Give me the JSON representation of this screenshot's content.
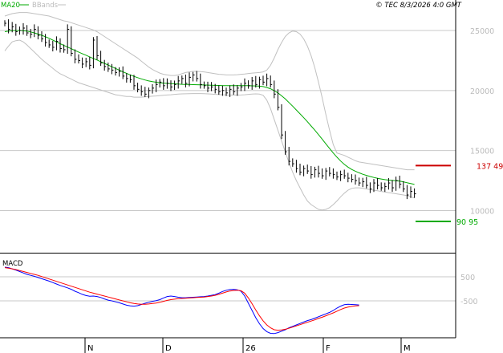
{
  "header": {
    "legend_ma20": "MA20",
    "legend_bbands": "BBands",
    "timestamp": "© TEC 8/3/2026 4:0 GMT"
  },
  "colors": {
    "price_bars": "#000000",
    "ma20": "#00aa00",
    "bbands": "#c0c0c0",
    "macd_line": "#0000ff",
    "macd_signal": "#ff0000",
    "resistance": "#cc0000",
    "support": "#00aa00",
    "grid": "#c8c8c8",
    "frame": "#000000"
  },
  "chart_data": [
    {
      "type": "ohlc",
      "panel": "price",
      "title": "",
      "y_ticks": [
        10000,
        15000,
        20000,
        25000
      ],
      "y_tick_labels": [
        "10000",
        "15000",
        "20000",
        "25000"
      ],
      "ylim": [
        7000,
        28000
      ],
      "x_ticks": [
        "N",
        "D",
        "26",
        "F",
        "M"
      ],
      "grid": true,
      "legend": [
        "MA20",
        "BBands"
      ],
      "legend_position": "top-left",
      "closes": [
        25600,
        25100,
        25300,
        24900,
        25000,
        25200,
        24800,
        24700,
        25100,
        24600,
        24300,
        24000,
        23800,
        23600,
        24100,
        23500,
        23400,
        25100,
        23100,
        22600,
        22500,
        22200,
        22400,
        22100,
        24200,
        22900,
        22300,
        22000,
        21800,
        21700,
        21500,
        21600,
        21200,
        21000,
        20900,
        20400,
        20100,
        19900,
        19700,
        20000,
        20200,
        20500,
        20700,
        20400,
        20600,
        20300,
        20500,
        20800,
        21000,
        20600,
        21100,
        21300,
        21000,
        20500,
        20400,
        20200,
        20300,
        20100,
        19900,
        20000,
        19800,
        20100,
        19900,
        20200,
        20300,
        20600,
        20400,
        20800,
        20500,
        20900,
        20700,
        21000,
        20500,
        19700,
        18600,
        16300,
        14900,
        14100,
        13900,
        13500,
        13200,
        13500,
        13300,
        13000,
        13400,
        13100,
        12900,
        13300,
        13100,
        13000,
        12800,
        13000,
        12900,
        12700,
        12600,
        12500,
        12300,
        12400,
        12100,
        11800,
        12300,
        12100,
        11900,
        12000,
        12300,
        11900,
        12500,
        12200,
        11800,
        11300,
        11600,
        11400
      ],
      "series": [
        {
          "name": "MA20",
          "values": [
            24900,
            24950,
            25000,
            25000,
            25000,
            24980,
            24950,
            24880,
            24800,
            24700,
            24600,
            24480,
            24350,
            24200,
            24050,
            23900,
            23760,
            23620,
            23480,
            23340,
            23200,
            23070,
            22940,
            22800,
            22670,
            22540,
            22400,
            22260,
            22120,
            21980,
            21840,
            21700,
            21560,
            21430,
            21300,
            21180,
            21070,
            20970,
            20880,
            20800,
            20740,
            20690,
            20650,
            20620,
            20600,
            20580,
            20560,
            20540,
            20520,
            20510,
            20500,
            20490,
            20480,
            20470,
            20460,
            20450,
            20440,
            20430,
            20420,
            20410,
            20400,
            20400,
            20400,
            20400,
            20400,
            20400,
            20400,
            20390,
            20380,
            20360,
            20330,
            20250,
            20150,
            19990,
            19800,
            19560,
            19300,
            19000,
            18700,
            18380,
            18060,
            17740,
            17400,
            17050,
            16700,
            16330,
            15950,
            15560,
            15170,
            14800,
            14450,
            14130,
            13850,
            13620,
            13430,
            13280,
            13150,
            13030,
            12930,
            12840,
            12760,
            12690,
            12630,
            12580,
            12540,
            12510,
            12490,
            12450,
            12400,
            12320,
            12250,
            12180
          ]
        },
        {
          "name": "BBands upper",
          "values": [
            26200,
            26300,
            26400,
            26450,
            26500,
            26500,
            26500,
            26450,
            26400,
            26350,
            26300,
            26250,
            26200,
            26100,
            26000,
            25900,
            25800,
            25750,
            25650,
            25550,
            25450,
            25350,
            25250,
            25150,
            25050,
            24900,
            24700,
            24500,
            24300,
            24100,
            23900,
            23700,
            23500,
            23300,
            23100,
            22900,
            22700,
            22450,
            22200,
            21950,
            21750,
            21600,
            21450,
            21350,
            21300,
            21250,
            21250,
            21300,
            21400,
            21500,
            21550,
            21600,
            21600,
            21580,
            21550,
            21500,
            21450,
            21400,
            21350,
            21330,
            21300,
            21300,
            21300,
            21320,
            21350,
            21380,
            21420,
            21450,
            21480,
            21500,
            21550,
            21700,
            22100,
            22700,
            23400,
            24000,
            24500,
            24800,
            24950,
            24900,
            24700,
            24300,
            23700,
            22900,
            21900,
            20700,
            19400,
            18000,
            16700,
            15500,
            14800,
            14700,
            14600,
            14450,
            14300,
            14150,
            14050,
            14000,
            13950,
            13900,
            13850,
            13800,
            13750,
            13700,
            13650,
            13600,
            13550,
            13500,
            13450,
            13400,
            13400,
            13400
          ]
        },
        {
          "name": "BBands lower",
          "values": [
            23300,
            23700,
            24050,
            24150,
            24200,
            24050,
            23800,
            23500,
            23200,
            22900,
            22600,
            22350,
            22100,
            21850,
            21600,
            21400,
            21250,
            21100,
            20950,
            20800,
            20650,
            20550,
            20450,
            20350,
            20250,
            20150,
            20050,
            19950,
            19850,
            19750,
            19650,
            19600,
            19550,
            19500,
            19500,
            19450,
            19450,
            19450,
            19480,
            19500,
            19530,
            19550,
            19580,
            19600,
            19630,
            19650,
            19680,
            19700,
            19720,
            19730,
            19740,
            19750,
            19750,
            19750,
            19740,
            19720,
            19700,
            19680,
            19660,
            19650,
            19630,
            19620,
            19620,
            19620,
            19630,
            19650,
            19680,
            19700,
            19720,
            19700,
            19600,
            19200,
            18500,
            17600,
            16700,
            15800,
            14900,
            14000,
            13200,
            12500,
            11900,
            11300,
            10800,
            10500,
            10300,
            10100,
            10050,
            10100,
            10250,
            10500,
            10800,
            11150,
            11450,
            11700,
            11850,
            11900,
            11900,
            11850,
            11800,
            11750,
            11700,
            11650,
            11600,
            11550,
            11500,
            11450,
            11400,
            11350,
            11300,
            11250,
            11150,
            11050
          ]
        }
      ],
      "reference_levels": [
        {
          "value": 13749,
          "label": "137 49",
          "color": "#cc0000"
        },
        {
          "value": 9095,
          "label": "90 95",
          "color": "#00aa00"
        }
      ]
    },
    {
      "type": "line",
      "panel": "indicator",
      "title": "MACD",
      "y_ticks": [
        500,
        -500
      ],
      "y_tick_labels": [
        "500",
        "-500"
      ],
      "ylim": [
        -2400,
        1200
      ],
      "grid": true,
      "series": [
        {
          "name": "MACD",
          "values": [
            900,
            880,
            830,
            780,
            720,
            660,
            600,
            560,
            520,
            470,
            420,
            370,
            320,
            260,
            200,
            140,
            90,
            40,
            -20,
            -100,
            -160,
            -230,
            -280,
            -310,
            -300,
            -320,
            -360,
            -420,
            -470,
            -500,
            -540,
            -580,
            -630,
            -680,
            -710,
            -720,
            -700,
            -650,
            -600,
            -560,
            -520,
            -490,
            -450,
            -380,
            -320,
            -300,
            -320,
            -350,
            -370,
            -370,
            -360,
            -350,
            -340,
            -330,
            -320,
            -300,
            -270,
            -240,
            -180,
            -110,
            -60,
            -30,
            -20,
            -40,
            -100,
            -300,
            -600,
            -900,
            -1200,
            -1450,
            -1650,
            -1780,
            -1850,
            -1860,
            -1820,
            -1760,
            -1700,
            -1620,
            -1560,
            -1500,
            -1440,
            -1380,
            -1320,
            -1280,
            -1220,
            -1160,
            -1100,
            -1040,
            -980,
            -900,
            -800,
            -720,
            -660,
            -640,
            -650,
            -660,
            -670
          ]
        },
        {
          "name": "Signal",
          "values": [
            880,
            860,
            830,
            800,
            760,
            720,
            680,
            640,
            600,
            560,
            510,
            460,
            410,
            360,
            310,
            260,
            210,
            160,
            110,
            60,
            10,
            -40,
            -90,
            -140,
            -180,
            -220,
            -260,
            -300,
            -340,
            -380,
            -420,
            -460,
            -500,
            -540,
            -580,
            -610,
            -630,
            -640,
            -640,
            -630,
            -610,
            -590,
            -560,
            -520,
            -480,
            -450,
            -430,
            -410,
            -400,
            -390,
            -380,
            -370,
            -360,
            -350,
            -340,
            -320,
            -300,
            -270,
            -230,
            -180,
            -130,
            -90,
            -70,
            -60,
            -80,
            -180,
            -380,
            -620,
            -880,
            -1120,
            -1330,
            -1500,
            -1620,
            -1700,
            -1720,
            -1710,
            -1680,
            -1640,
            -1590,
            -1540,
            -1490,
            -1440,
            -1390,
            -1340,
            -1290,
            -1230,
            -1180,
            -1120,
            -1060,
            -1000,
            -930,
            -860,
            -800,
            -760,
            -730,
            -710,
            -700
          ]
        }
      ]
    }
  ]
}
